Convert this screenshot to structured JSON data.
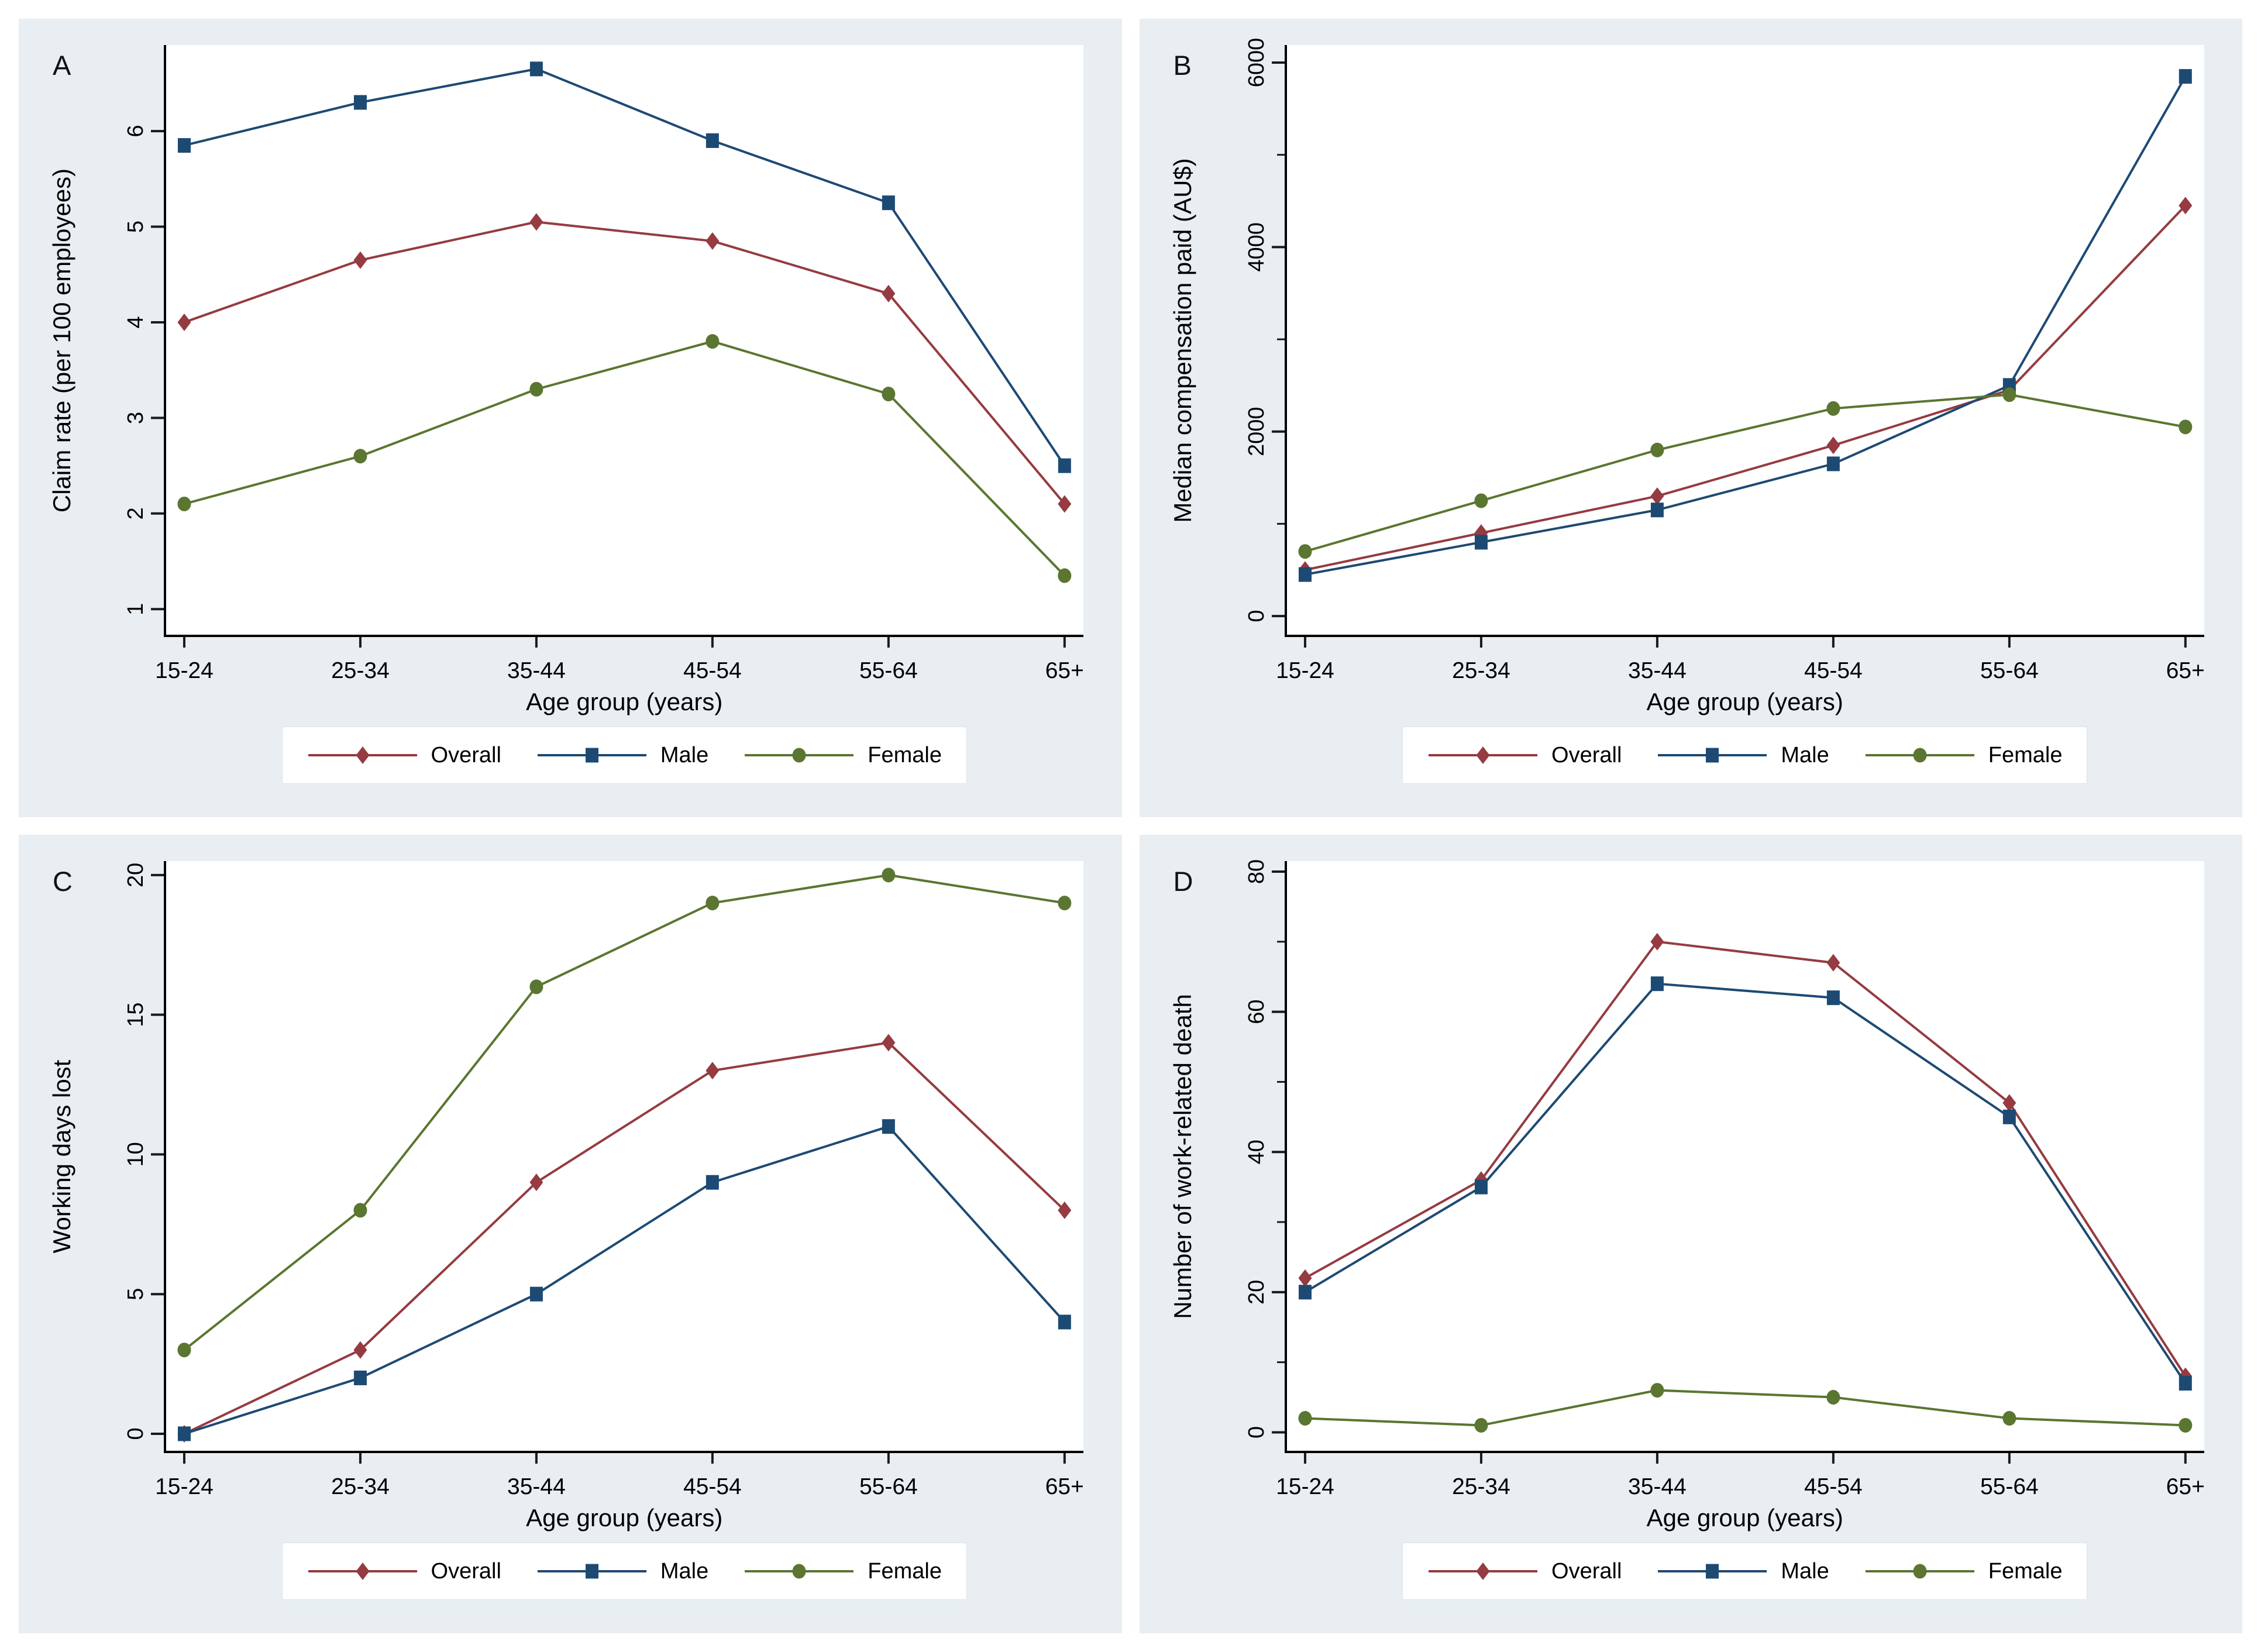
{
  "figure": {
    "background_color": "#e8eef2",
    "plot_background_color": "#ffffff",
    "axis_color": "#000000",
    "tick_color": "#1a1a1a",
    "x_categories": [
      "15-24",
      "25-34",
      "35-44",
      "45-54",
      "55-64",
      "65+"
    ],
    "series": [
      {
        "name": "Overall",
        "color": "#953b41",
        "marker": "diamond"
      },
      {
        "name": "Male",
        "color": "#1d4a73",
        "marker": "square"
      },
      {
        "name": "Female",
        "color": "#5a7630",
        "marker": "circle"
      }
    ]
  },
  "chart_data": [
    {
      "type": "line",
      "panel_label": "A",
      "ylabel": "Claim rate (per 100 employees)",
      "xlabel": "Age group (years)",
      "categories": [
        "15-24",
        "25-34",
        "35-44",
        "45-54",
        "55-64",
        "65+"
      ],
      "yticks": [
        1,
        2,
        3,
        4,
        5,
        6
      ],
      "yminorticks": [],
      "ylim": [
        0.72,
        6.9
      ],
      "legend_position": "bottom",
      "grid": false,
      "series": [
        {
          "name": "Overall",
          "values": [
            4.0,
            4.65,
            5.05,
            4.85,
            4.3,
            2.1
          ]
        },
        {
          "name": "Male",
          "values": [
            5.85,
            6.3,
            6.65,
            5.9,
            5.25,
            2.5
          ]
        },
        {
          "name": "Female",
          "values": [
            2.1,
            2.6,
            3.3,
            3.8,
            3.25,
            1.35
          ]
        }
      ]
    },
    {
      "type": "line",
      "panel_label": "B",
      "ylabel": "Median compensation paid (AU$)",
      "xlabel": "Age group (years)",
      "categories": [
        "15-24",
        "25-34",
        "35-44",
        "45-54",
        "55-64",
        "65+"
      ],
      "yticks": [
        0,
        2000,
        4000,
        6000
      ],
      "yminorticks": [
        1000,
        3000,
        5000
      ],
      "ylim": [
        -215,
        6190
      ],
      "legend_position": "bottom",
      "grid": false,
      "series": [
        {
          "name": "Overall",
          "values": [
            500,
            900,
            1300,
            1850,
            2450,
            4450
          ]
        },
        {
          "name": "Male",
          "values": [
            450,
            800,
            1150,
            1650,
            2500,
            5850
          ]
        },
        {
          "name": "Female",
          "values": [
            700,
            1250,
            1800,
            2250,
            2400,
            2050
          ]
        }
      ]
    },
    {
      "type": "line",
      "panel_label": "C",
      "ylabel": "Working days lost",
      "xlabel": "Age group (years)",
      "categories": [
        "15-24",
        "25-34",
        "35-44",
        "45-54",
        "55-64",
        "65+"
      ],
      "yticks": [
        0,
        5,
        10,
        15,
        20
      ],
      "yminorticks": [],
      "ylim": [
        -0.65,
        20.5
      ],
      "legend_position": "bottom",
      "grid": false,
      "series": [
        {
          "name": "Overall",
          "values": [
            0,
            3,
            9,
            13,
            14,
            8
          ]
        },
        {
          "name": "Male",
          "values": [
            0,
            2,
            5,
            9,
            11,
            4
          ]
        },
        {
          "name": "Female",
          "values": [
            3,
            8,
            16,
            19,
            20,
            19
          ]
        }
      ]
    },
    {
      "type": "line",
      "panel_label": "D",
      "ylabel": "Number of work-related death",
      "xlabel": "Age group (years)",
      "categories": [
        "15-24",
        "25-34",
        "35-44",
        "45-54",
        "55-64",
        "65+"
      ],
      "yticks": [
        0,
        20,
        40,
        60,
        80
      ],
      "yminorticks": [
        10,
        30,
        50,
        70
      ],
      "ylim": [
        -2.8,
        81.5
      ],
      "legend_position": "bottom",
      "grid": false,
      "series": [
        {
          "name": "Overall",
          "values": [
            22,
            36,
            70,
            67,
            47,
            8
          ]
        },
        {
          "name": "Male",
          "values": [
            20,
            35,
            64,
            62,
            45,
            7
          ]
        },
        {
          "name": "Female",
          "values": [
            2,
            1,
            6,
            5,
            2,
            1
          ]
        }
      ]
    }
  ]
}
